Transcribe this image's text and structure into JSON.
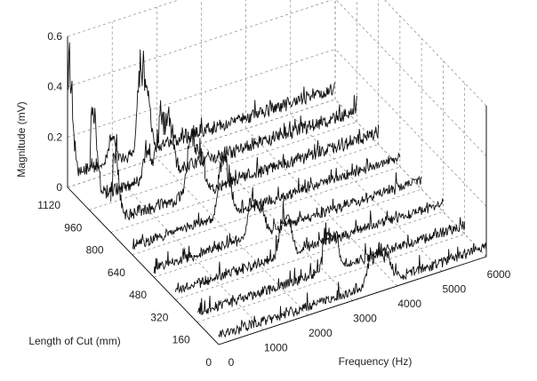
{
  "chart_data": {
    "type": "line",
    "subtype": "waterfall-3d",
    "xlabel": "Frequency (Hz)",
    "ylabel": "Length of Cut (mm)",
    "zlabel": "Magnitude (mV)",
    "xlim": [
      0,
      6000
    ],
    "ylim": [
      0,
      1120
    ],
    "zlim": [
      0,
      0.6
    ],
    "x_ticks": [
      "0",
      "1000",
      "2000",
      "3000",
      "4000",
      "5000",
      "6000"
    ],
    "y_ticks": [
      "0",
      "160",
      "320",
      "480",
      "640",
      "800",
      "960",
      "1120"
    ],
    "z_ticks": [
      "0",
      "0.2",
      "0.4",
      "0.6"
    ],
    "grid": true,
    "series": [
      {
        "cut_length": 0,
        "baseline": 0.03,
        "peaks": [
          [
            3400,
            0.14
          ],
          [
            3600,
            0.18
          ],
          [
            3800,
            0.12
          ]
        ]
      },
      {
        "cut_length": 160,
        "baseline": 0.03,
        "peaks": [
          [
            2900,
            0.2
          ],
          [
            3100,
            0.16
          ]
        ]
      },
      {
        "cut_length": 320,
        "baseline": 0.03,
        "peaks": [
          [
            2400,
            0.18
          ],
          [
            2550,
            0.14
          ]
        ]
      },
      {
        "cut_length": 480,
        "baseline": 0.03,
        "peaks": [
          [
            2200,
            0.2
          ],
          [
            2400,
            0.12
          ]
        ]
      },
      {
        "cut_length": 640,
        "baseline": 0.03,
        "peaks": [
          [
            2000,
            0.26
          ],
          [
            2150,
            0.18
          ]
        ]
      },
      {
        "cut_length": 800,
        "baseline": 0.04,
        "peaks": [
          [
            100,
            0.33
          ],
          [
            1800,
            0.3
          ],
          [
            2000,
            0.22
          ]
        ]
      },
      {
        "cut_length": 960,
        "baseline": 0.04,
        "peaks": [
          [
            100,
            0.45
          ],
          [
            1300,
            0.18
          ],
          [
            1600,
            0.3
          ],
          [
            1800,
            0.26
          ]
        ]
      },
      {
        "cut_length": 1120,
        "baseline": 0.04,
        "peaks": [
          [
            30,
            0.55
          ],
          [
            1000,
            0.12
          ],
          [
            1650,
            0.4
          ],
          [
            1800,
            0.2
          ]
        ]
      }
    ]
  }
}
